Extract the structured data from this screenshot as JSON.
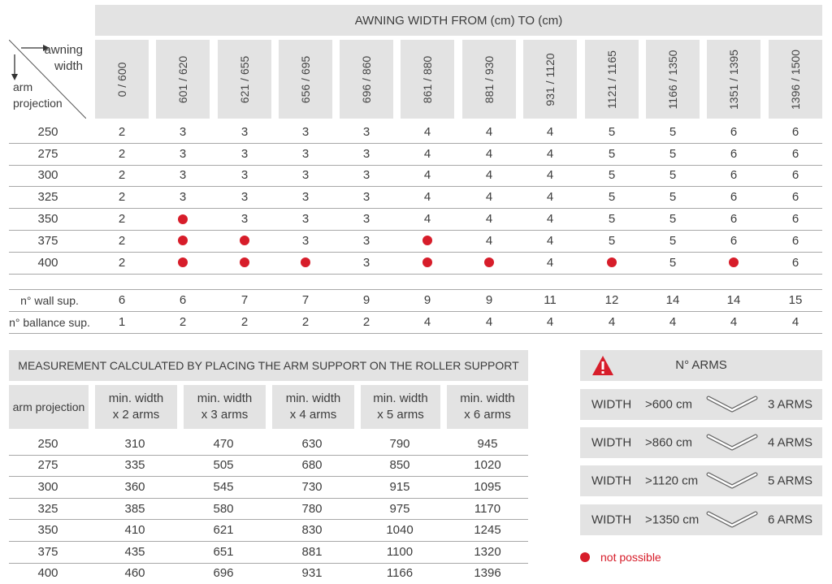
{
  "top_table": {
    "title": "AWNING WIDTH FROM (cm) TO (cm)",
    "corner": {
      "top_label_1": "awning",
      "top_label_2": "width",
      "bottom_label_1": "arm",
      "bottom_label_2": "projection"
    },
    "columns": [
      "0 / 600",
      "601 / 620",
      "621 / 655",
      "656 / 695",
      "696 / 860",
      "861 / 880",
      "881 / 930",
      "931 / 1120",
      "1121 / 1165",
      "1166 / 1350",
      "1351 / 1395",
      "1396 / 1500"
    ],
    "rows": [
      {
        "projection": "250",
        "cells": [
          "2",
          "3",
          "3",
          "3",
          "3",
          "4",
          "4",
          "4",
          "5",
          "5",
          "6",
          "6"
        ]
      },
      {
        "projection": "275",
        "cells": [
          "2",
          "3",
          "3",
          "3",
          "3",
          "4",
          "4",
          "4",
          "5",
          "5",
          "6",
          "6"
        ]
      },
      {
        "projection": "300",
        "cells": [
          "2",
          "3",
          "3",
          "3",
          "3",
          "4",
          "4",
          "4",
          "5",
          "5",
          "6",
          "6"
        ]
      },
      {
        "projection": "325",
        "cells": [
          "2",
          "3",
          "3",
          "3",
          "3",
          "4",
          "4",
          "4",
          "5",
          "5",
          "6",
          "6"
        ]
      },
      {
        "projection": "350",
        "cells": [
          "2",
          "●",
          "3",
          "3",
          "3",
          "4",
          "4",
          "4",
          "5",
          "5",
          "6",
          "6"
        ]
      },
      {
        "projection": "375",
        "cells": [
          "2",
          "●",
          "●",
          "3",
          "3",
          "●",
          "4",
          "4",
          "5",
          "5",
          "6",
          "6"
        ]
      },
      {
        "projection": "400",
        "cells": [
          "2",
          "●",
          "●",
          "●",
          "3",
          "●",
          "●",
          "4",
          "●",
          "5",
          "●",
          "6"
        ]
      }
    ],
    "supports": [
      {
        "label": "n° wall sup.",
        "cells": [
          "6",
          "6",
          "7",
          "7",
          "9",
          "9",
          "9",
          "11",
          "12",
          "14",
          "14",
          "15"
        ]
      },
      {
        "label": "n° ballance sup.",
        "cells": [
          "1",
          "2",
          "2",
          "2",
          "2",
          "4",
          "4",
          "4",
          "4",
          "4",
          "4",
          "4"
        ]
      }
    ]
  },
  "bottom_table": {
    "title": "MEASUREMENT CALCULATED BY PLACING THE ARM SUPPORT ON THE ROLLER SUPPORT",
    "headers": [
      [
        "arm projection"
      ],
      [
        "min. width",
        "x 2 arms"
      ],
      [
        "min. width",
        "x 3 arms"
      ],
      [
        "min. width",
        "x 4 arms"
      ],
      [
        "min. width",
        "x 5 arms"
      ],
      [
        "min. width",
        "x 6 arms"
      ]
    ],
    "rows": [
      [
        "250",
        "310",
        "470",
        "630",
        "790",
        "945"
      ],
      [
        "275",
        "335",
        "505",
        "680",
        "850",
        "1020"
      ],
      [
        "300",
        "360",
        "545",
        "730",
        "915",
        "1095"
      ],
      [
        "325",
        "385",
        "580",
        "780",
        "975",
        "1170"
      ],
      [
        "350",
        "410",
        "621",
        "830",
        "1040",
        "1245"
      ],
      [
        "375",
        "435",
        "651",
        "881",
        "1100",
        "1320"
      ],
      [
        "400",
        "460",
        "696",
        "931",
        "1166",
        "1396"
      ]
    ]
  },
  "arms_panel": {
    "title": "N° ARMS",
    "warning_icon": "warning-triangle-icon",
    "rows": [
      {
        "label": "WIDTH",
        "threshold": ">600 cm",
        "arms": "3 ARMS",
        "icon": "arm-diagram-icon"
      },
      {
        "label": "WIDTH",
        "threshold": ">860 cm",
        "arms": "4 ARMS",
        "icon": "arm-diagram-icon"
      },
      {
        "label": "WIDTH",
        "threshold": ">1120 cm",
        "arms": "5 ARMS",
        "icon": "arm-diagram-icon"
      },
      {
        "label": "WIDTH",
        "threshold": ">1350 cm",
        "arms": "6 ARMS",
        "icon": "arm-diagram-icon"
      }
    ],
    "legend": {
      "text": "not possible",
      "color": "#d71d2a"
    }
  },
  "colors": {
    "header_bg": "#e3e3e3",
    "accent_red": "#d71d2a",
    "text": "#3c3c3c"
  }
}
